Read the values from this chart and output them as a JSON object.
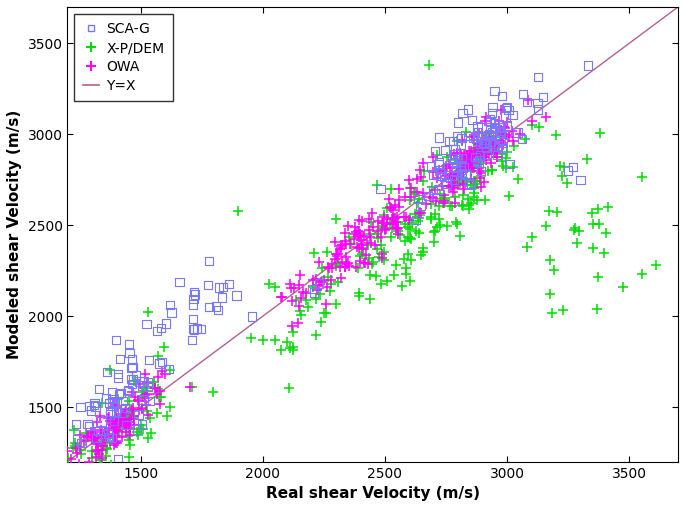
{
  "title": "",
  "xlabel": "Real shear Velocity (m/s)",
  "ylabel": "Modeled shear Velocity (m/s)",
  "xlim": [
    1200,
    3700
  ],
  "ylim": [
    1200,
    3700
  ],
  "xticks": [
    1500,
    2000,
    2500,
    3000,
    3500
  ],
  "yticks": [
    1500,
    2000,
    2500,
    3000,
    3500
  ],
  "line_color": "#b06090",
  "sca_color": "#7777ff",
  "xpdem_color": "#00dd00",
  "owa_color": "#ff00ff",
  "seed": 42,
  "marker_size": 4
}
